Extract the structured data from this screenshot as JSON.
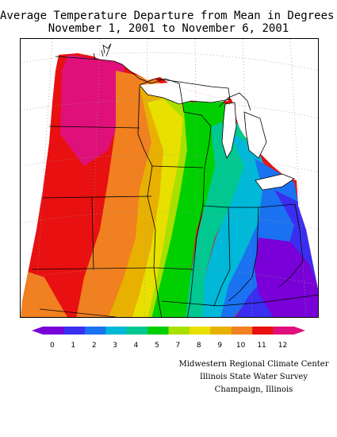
{
  "title": {
    "line1": "Average Temperature Departure from Mean in Degrees F",
    "line2": "November 1, 2001  to  November 6, 2001"
  },
  "legend": {
    "ticks": [
      "0",
      "1",
      "2",
      "3",
      "4",
      "5",
      "7",
      "8",
      "9",
      "10",
      "11",
      "12"
    ],
    "colors": [
      "#7a00d8",
      "#3a2ef0",
      "#1a72f0",
      "#00b8d8",
      "#00c890",
      "#00d000",
      "#a8e000",
      "#e8e000",
      "#e8b000",
      "#f08020",
      "#e81010",
      "#e0107a"
    ]
  },
  "credits": {
    "line1": "Midwestern Regional Climate Center",
    "line2": "Illinois State Water Survey",
    "line3": "Champaign, Illinois"
  }
}
